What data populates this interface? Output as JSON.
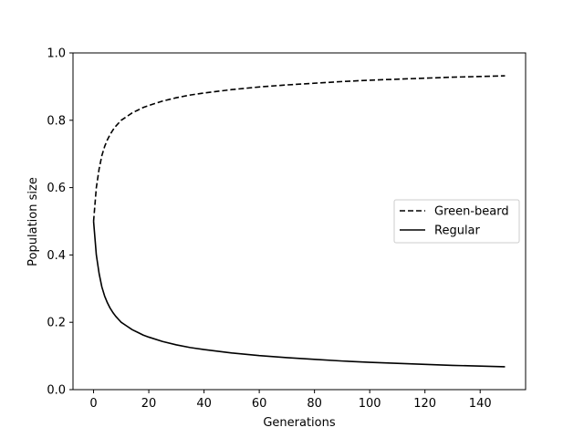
{
  "chart_data": {
    "type": "line",
    "title": "",
    "xlabel": "Generations",
    "ylabel": "Population size",
    "xlim": [
      -7.45,
      156.45
    ],
    "ylim": [
      0.0,
      1.0
    ],
    "xticks": [
      0,
      20,
      40,
      60,
      80,
      100,
      120,
      140
    ],
    "yticks": [
      0.0,
      0.2,
      0.4,
      0.6,
      0.8,
      1.0
    ],
    "xtick_labels": [
      "0",
      "20",
      "40",
      "60",
      "80",
      "100",
      "120",
      "140"
    ],
    "ytick_labels": [
      "0.0",
      "0.2",
      "0.4",
      "0.6",
      "0.8",
      "1.0"
    ],
    "grid": false,
    "legend_position": "center-right",
    "series": [
      {
        "name": "Green-beard",
        "line_style": "dashed",
        "color": "#000000",
        "x": [
          0,
          1,
          2,
          3,
          4,
          5,
          6,
          7,
          8,
          9,
          10,
          12,
          14,
          16,
          18,
          20,
          25,
          30,
          35,
          40,
          50,
          60,
          70,
          80,
          90,
          100,
          110,
          120,
          130,
          140,
          149
        ],
        "y": [
          0.5,
          0.6,
          0.655,
          0.695,
          0.722,
          0.742,
          0.758,
          0.771,
          0.782,
          0.791,
          0.8,
          0.811,
          0.822,
          0.83,
          0.838,
          0.844,
          0.857,
          0.867,
          0.875,
          0.881,
          0.891,
          0.899,
          0.905,
          0.91,
          0.915,
          0.919,
          0.922,
          0.925,
          0.928,
          0.93,
          0.932
        ]
      },
      {
        "name": "Regular",
        "line_style": "solid",
        "color": "#000000",
        "x": [
          0,
          1,
          2,
          3,
          4,
          5,
          6,
          7,
          8,
          9,
          10,
          12,
          14,
          16,
          18,
          20,
          25,
          30,
          35,
          40,
          50,
          60,
          70,
          80,
          90,
          100,
          110,
          120,
          130,
          140,
          149
        ],
        "y": [
          0.5,
          0.4,
          0.345,
          0.305,
          0.278,
          0.258,
          0.242,
          0.229,
          0.218,
          0.209,
          0.2,
          0.189,
          0.178,
          0.17,
          0.162,
          0.156,
          0.143,
          0.133,
          0.125,
          0.119,
          0.109,
          0.101,
          0.095,
          0.09,
          0.085,
          0.081,
          0.078,
          0.075,
          0.072,
          0.07,
          0.068
        ]
      }
    ]
  }
}
